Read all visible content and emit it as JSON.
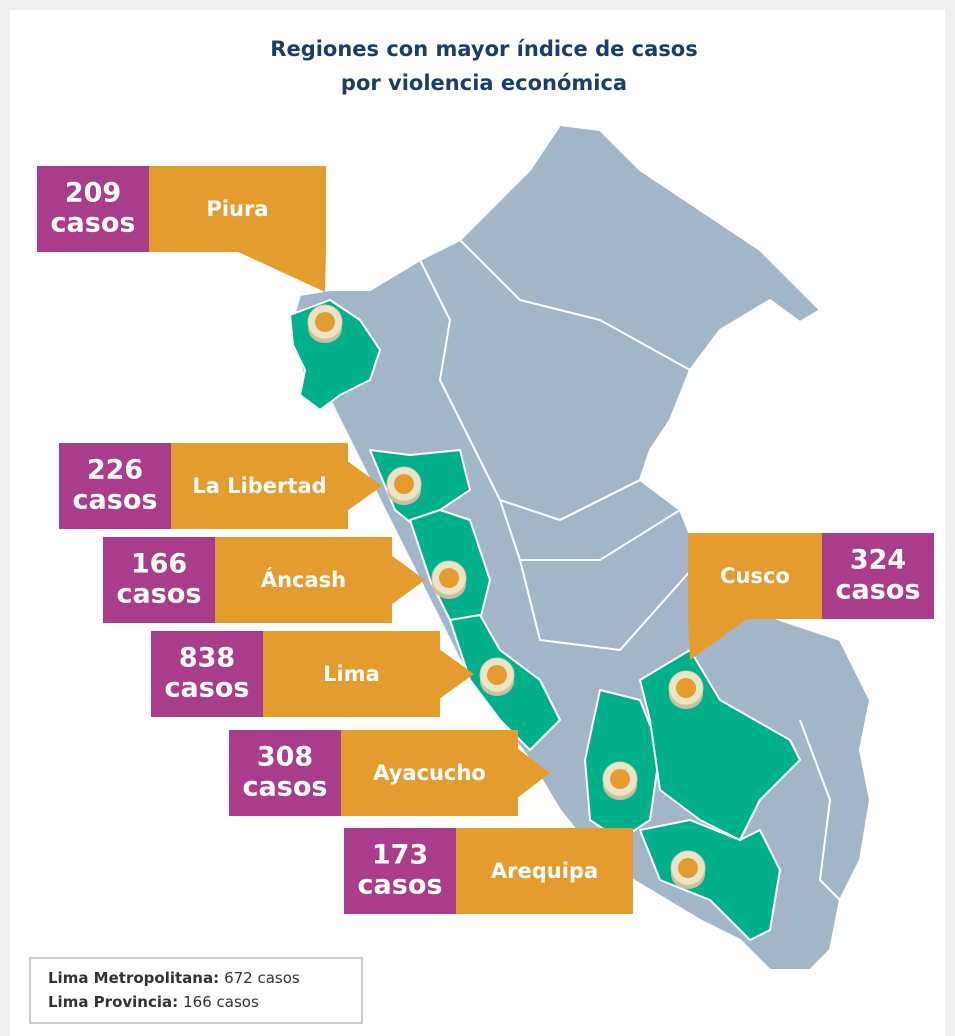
{
  "title": [
    "Regiones con mayor índice de casos",
    "por violencia económica"
  ],
  "regions": [
    {
      "name": "Piura",
      "count": 209,
      "unit": "casos"
    },
    {
      "name": "La Libertad",
      "count": 226,
      "unit": "casos"
    },
    {
      "name": "Áncash",
      "count": 166,
      "unit": "casos"
    },
    {
      "name": "Lima",
      "count": 838,
      "unit": "casos"
    },
    {
      "name": "Ayacucho",
      "count": 308,
      "unit": "casos"
    },
    {
      "name": "Arequipa",
      "count": 173,
      "unit": "casos"
    },
    {
      "name": "Cusco",
      "count": 324,
      "unit": "casos"
    }
  ],
  "legend": [
    {
      "label": "Lima Metropolitana:",
      "value": "672 casos"
    },
    {
      "label": "Lima Provincia:",
      "value": "166 casos"
    }
  ]
}
